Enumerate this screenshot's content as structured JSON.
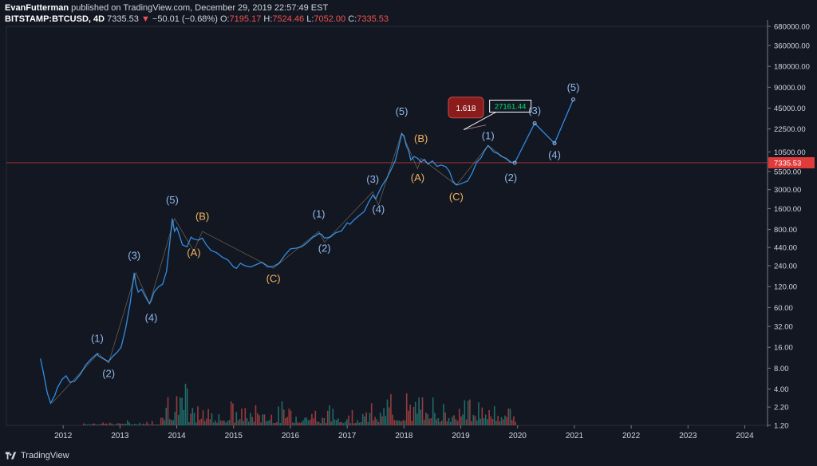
{
  "header": {
    "author": "EvanFutterman",
    "published": "published on TradingView.com, December 29, 2019 22:57:49 EST",
    "symbol": "BITSTAMP:BTCUSD, 4D",
    "last": "7335.53",
    "arrow": "▼",
    "change": "−50.01 (−0.68%)",
    "o_label": "O:",
    "o_val": "7195.17",
    "h_label": "H:",
    "h_val": "7524.46",
    "l_label": "L:",
    "l_val": "7052.00",
    "c_label": "C:",
    "c_val": "7335.53"
  },
  "footer": {
    "brand": "TradingView"
  },
  "colors": {
    "background": "#131722",
    "price_line": "#2f8de4",
    "wave_label_blue": "#8fb8e8",
    "wave_label_orange": "#f0b35e",
    "price_marker": "#e03a3a",
    "volume_up": "#26a69a",
    "volume_down": "#ef5350",
    "fib_box": "#8b1c1c",
    "target_text": "#00e676"
  },
  "chart_data": {
    "type": "line",
    "scale": "log",
    "x_ticks": [
      "2012",
      "2013",
      "2014",
      "2015",
      "2016",
      "2017",
      "2018",
      "2019",
      "2020",
      "2021",
      "2022",
      "2023",
      "2024"
    ],
    "y_ticks": [
      "680000.00",
      "360000.00",
      "180000.00",
      "90000.00",
      "45000.00",
      "22500.00",
      "10500.00",
      "5500.00",
      "3000.00",
      "1600.00",
      "800.00",
      "440.00",
      "240.00",
      "120.00",
      "60.00",
      "32.00",
      "16.00",
      "8.00",
      "4.00",
      "2.20",
      "1.20"
    ],
    "ylim": [
      1.2,
      680000
    ],
    "xlim": [
      2011.0,
      2024.4
    ],
    "last_price_label": "7335.53",
    "last_price": 7335.53,
    "series": [
      {
        "x": [
          2011.6,
          2011.65,
          2011.72,
          2011.78,
          2011.85,
          2011.9,
          2011.98,
          2012.05,
          2012.12,
          2012.2,
          2012.3,
          2012.4,
          2012.5,
          2012.6,
          2012.62,
          2012.7,
          2012.8,
          2012.88,
          2012.95,
          2013.02,
          2013.1,
          2013.18,
          2013.25,
          2013.28,
          2013.32,
          2013.38,
          2013.45,
          2013.52,
          2013.55,
          2013.6,
          2013.68,
          2013.75,
          2013.82,
          2013.88,
          2013.92,
          2013.96,
          2014.0,
          2014.05,
          2014.1,
          2014.18,
          2014.25,
          2014.3,
          2014.38,
          2014.45,
          2014.52,
          2014.6,
          2014.7,
          2014.8,
          2014.9,
          2015.0,
          2015.05,
          2015.12,
          2015.2,
          2015.3,
          2015.4,
          2015.5,
          2015.6,
          2015.7,
          2015.8,
          2015.9,
          2016.0,
          2016.1,
          2016.2,
          2016.3,
          2016.4,
          2016.45,
          2016.5,
          2016.55,
          2016.6,
          2016.7,
          2016.8,
          2016.9,
          2017.0,
          2017.05,
          2017.12,
          2017.2,
          2017.3,
          2017.38,
          2017.45,
          2017.5,
          2017.55,
          2017.62,
          2017.7,
          2017.78,
          2017.85,
          2017.92,
          2017.96,
          2018.0,
          2018.04,
          2018.08,
          2018.12,
          2018.18,
          2018.24,
          2018.3,
          2018.36,
          2018.42,
          2018.5,
          2018.58,
          2018.66,
          2018.74,
          2018.8,
          2018.86,
          2018.92,
          2018.98,
          2019.05,
          2019.12,
          2019.2,
          2019.28,
          2019.35,
          2019.42,
          2019.48,
          2019.52,
          2019.58,
          2019.65,
          2019.72,
          2019.8,
          2019.88,
          2019.95
        ],
        "y": [
          11,
          7,
          3.5,
          2.5,
          3.2,
          4.2,
          5.5,
          6.2,
          5,
          5.2,
          6.5,
          9,
          11,
          13,
          12,
          11,
          10,
          12,
          13.5,
          16,
          30,
          70,
          190,
          130,
          100,
          110,
          85,
          68,
          75,
          100,
          120,
          130,
          200,
          550,
          1150,
          750,
          850,
          650,
          480,
          450,
          620,
          580,
          560,
          600,
          480,
          400,
          370,
          320,
          290,
          230,
          220,
          260,
          240,
          230,
          250,
          270,
          230,
          235,
          260,
          340,
          420,
          430,
          450,
          520,
          620,
          650,
          700,
          680,
          600,
          620,
          720,
          760,
          1000,
          950,
          1100,
          1250,
          1450,
          2000,
          2500,
          2200,
          2700,
          3500,
          4400,
          6000,
          8000,
          14000,
          19000,
          18000,
          13000,
          11000,
          8000,
          9000,
          8500,
          7500,
          8200,
          7000,
          7800,
          6500,
          6800,
          6400,
          5500,
          4000,
          3500,
          3600,
          3800,
          4000,
          5200,
          7500,
          8500,
          11000,
          13000,
          12000,
          10500,
          10000,
          9000,
          8500,
          7500,
          7335.53
        ]
      }
    ],
    "projection": [
      {
        "x": 2019.95,
        "y": 7335.53
      },
      {
        "x": 2020.3,
        "y": 27161.44
      },
      {
        "x": 2020.65,
        "y": 14000
      },
      {
        "x": 2020.98,
        "y": 60000
      }
    ],
    "fib_label": "1.618",
    "target_label": "27161.44",
    "wave_labels": [
      {
        "text": "(1)",
        "x": 2012.6,
        "y": 19,
        "color": "blue"
      },
      {
        "text": "(2)",
        "x": 2012.8,
        "y": 6,
        "color": "blue"
      },
      {
        "text": "(3)",
        "x": 2013.25,
        "y": 300,
        "color": "blue"
      },
      {
        "text": "(4)",
        "x": 2013.55,
        "y": 38,
        "color": "blue"
      },
      {
        "text": "(5)",
        "x": 2013.92,
        "y": 1900,
        "color": "blue"
      },
      {
        "text": "(A)",
        "x": 2014.3,
        "y": 330,
        "color": "orange"
      },
      {
        "text": "(B)",
        "x": 2014.45,
        "y": 1100,
        "color": "orange"
      },
      {
        "text": "(C)",
        "x": 2015.7,
        "y": 140,
        "color": "orange"
      },
      {
        "text": "(1)",
        "x": 2016.5,
        "y": 1200,
        "color": "blue"
      },
      {
        "text": "(2)",
        "x": 2016.6,
        "y": 380,
        "color": "blue"
      },
      {
        "text": "(3)",
        "x": 2017.45,
        "y": 3800,
        "color": "blue"
      },
      {
        "text": "(4)",
        "x": 2017.55,
        "y": 1400,
        "color": "blue"
      },
      {
        "text": "(5)",
        "x": 2017.96,
        "y": 36000,
        "color": "blue"
      },
      {
        "text": "(B)",
        "x": 2018.3,
        "y": 14500,
        "color": "orange"
      },
      {
        "text": "(A)",
        "x": 2018.24,
        "y": 4000,
        "color": "orange"
      },
      {
        "text": "(C)",
        "x": 2018.92,
        "y": 2100,
        "color": "orange"
      },
      {
        "text": "(1)",
        "x": 2019.48,
        "y": 16000,
        "color": "blue"
      },
      {
        "text": "(2)",
        "x": 2019.88,
        "y": 4000,
        "color": "blue"
      },
      {
        "text": "(3)",
        "x": 2020.3,
        "y": 37000,
        "color": "blue"
      },
      {
        "text": "(4)",
        "x": 2020.65,
        "y": 8500,
        "color": "blue"
      },
      {
        "text": "(5)",
        "x": 2020.98,
        "y": 80000,
        "color": "blue"
      }
    ]
  }
}
